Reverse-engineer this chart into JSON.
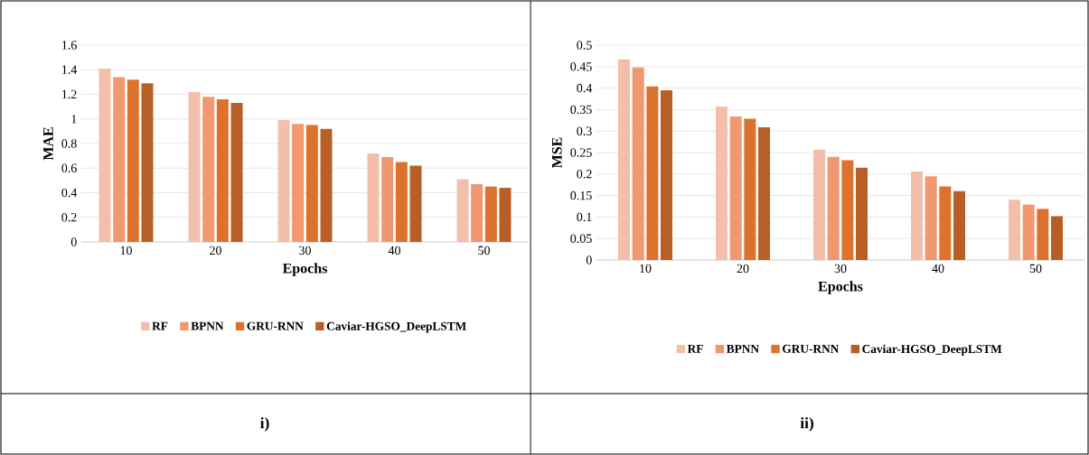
{
  "chart_data": [
    {
      "type": "bar",
      "xlabel": "Epochs",
      "ylabel": "MAE",
      "categories": [
        "10",
        "20",
        "30",
        "40",
        "50"
      ],
      "series": [
        {
          "name": "RF",
          "color": "#f4bfaa",
          "values": [
            1.41,
            1.22,
            0.99,
            0.72,
            0.51
          ]
        },
        {
          "name": "BPNN",
          "color": "#f09870",
          "values": [
            1.34,
            1.18,
            0.96,
            0.69,
            0.47
          ]
        },
        {
          "name": "GRU-RNN",
          "color": "#dd722f",
          "values": [
            1.32,
            1.16,
            0.95,
            0.65,
            0.45
          ]
        },
        {
          "name": "Caviar-HGSO_DeepLSTM",
          "color": "#b85f25",
          "values": [
            1.29,
            1.13,
            0.92,
            0.62,
            0.44
          ]
        }
      ],
      "ylim": [
        0,
        1.6
      ],
      "yticks": [
        0,
        0.2,
        0.4,
        0.6,
        0.8,
        1,
        1.2,
        1.4,
        1.6
      ],
      "grid": "y",
      "legend": "bottom",
      "annotations": [
        "i)"
      ]
    },
    {
      "type": "bar",
      "xlabel": "Epochs",
      "ylabel": "MSE",
      "categories": [
        "10",
        "20",
        "30",
        "40",
        "50"
      ],
      "series": [
        {
          "name": "RF",
          "color": "#f4bfaa",
          "values": [
            0.467,
            0.357,
            0.257,
            0.206,
            0.14
          ]
        },
        {
          "name": "BPNN",
          "color": "#f09870",
          "values": [
            0.448,
            0.334,
            0.24,
            0.195,
            0.129
          ]
        },
        {
          "name": "GRU-RNN",
          "color": "#dd722f",
          "values": [
            0.404,
            0.329,
            0.232,
            0.171,
            0.119
          ]
        },
        {
          "name": "Caviar-HGSO_DeepLSTM",
          "color": "#b85f25",
          "values": [
            0.395,
            0.309,
            0.215,
            0.16,
            0.102
          ]
        }
      ],
      "ylim": [
        0,
        0.5
      ],
      "yticks": [
        0,
        0.05,
        0.1,
        0.15,
        0.2,
        0.25,
        0.3,
        0.35,
        0.4,
        0.45,
        0.5
      ],
      "grid": "y",
      "legend": "bottom",
      "annotations": [
        "ii)"
      ]
    }
  ]
}
